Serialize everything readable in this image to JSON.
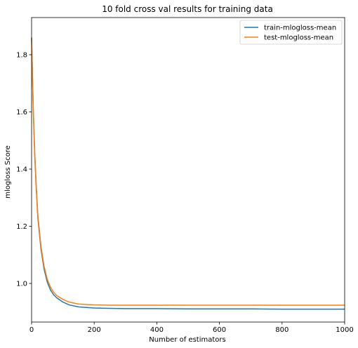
{
  "chart_data": {
    "type": "line",
    "title": "10 fold cross val results for training data",
    "xlabel": "Number of estimators",
    "ylabel": "mlogloss Score",
    "xlim": [
      0,
      1000
    ],
    "ylim": [
      0.865,
      1.93
    ],
    "x_ticks": [
      0,
      200,
      400,
      600,
      800,
      1000
    ],
    "x_tick_labels": [
      "0",
      "200",
      "400",
      "600",
      "800",
      "1000"
    ],
    "y_ticks": [
      1.0,
      1.2,
      1.4,
      1.6,
      1.8
    ],
    "y_tick_labels": [
      "1.0",
      "1.2",
      "1.4",
      "1.6",
      "1.8"
    ],
    "grid": false,
    "legend_position": "top-right",
    "x": [
      0,
      5,
      10,
      15,
      20,
      30,
      40,
      50,
      60,
      70,
      80,
      100,
      120,
      150,
      200,
      250,
      300,
      400,
      500,
      600,
      700,
      800,
      900,
      1000
    ],
    "series": [
      {
        "name": "train-mlogloss-mean",
        "color": "#1f77b4",
        "values": [
          1.86,
          1.62,
          1.45,
          1.33,
          1.23,
          1.12,
          1.05,
          1.005,
          0.978,
          0.961,
          0.95,
          0.935,
          0.925,
          0.918,
          0.914,
          0.913,
          0.912,
          0.912,
          0.911,
          0.911,
          0.911,
          0.91,
          0.91,
          0.91
        ]
      },
      {
        "name": "test-mlogloss-mean",
        "color": "#ff7f0e",
        "values": [
          1.86,
          1.63,
          1.46,
          1.34,
          1.24,
          1.13,
          1.06,
          1.015,
          0.988,
          0.97,
          0.958,
          0.944,
          0.935,
          0.928,
          0.925,
          0.924,
          0.924,
          0.924,
          0.924,
          0.924,
          0.924,
          0.924,
          0.924,
          0.924
        ]
      }
    ]
  }
}
